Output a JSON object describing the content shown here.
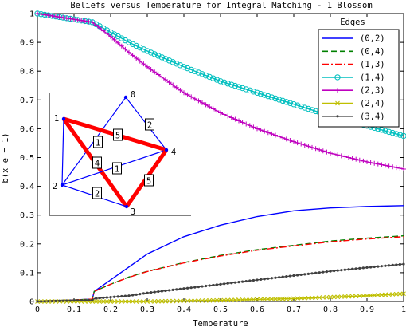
{
  "chart_data": {
    "type": "line",
    "title": "Beliefs versus Temperature for Integral Matching - 1 Blossom",
    "xlabel": "Temperature",
    "ylabel": "b(x_e = 1)",
    "xlim": [
      0,
      1
    ],
    "ylim": [
      0,
      1
    ],
    "xticks": [
      "0",
      "0.1",
      "0.2",
      "0.3",
      "0.4",
      "0.5",
      "0.6",
      "0.7",
      "0.8",
      "0.9",
      "1"
    ],
    "yticks": [
      "0",
      "0.1",
      "0.2",
      "0.3",
      "0.4",
      "0.5",
      "0.6",
      "0.7",
      "0.8",
      "0.9",
      "1"
    ],
    "grid": false,
    "legend": {
      "title": "Edges",
      "placement": "top-right"
    },
    "series": [
      {
        "name": "(0,2)",
        "color": "#0000ff",
        "style": "solid",
        "marker": "none",
        "x": [
          0,
          0.15,
          0.155,
          0.2,
          0.25,
          0.3,
          0.4,
          0.5,
          0.6,
          0.7,
          0.8,
          0.9,
          1.0
        ],
        "y": [
          0,
          0.008,
          0.035,
          0.075,
          0.12,
          0.165,
          0.225,
          0.265,
          0.295,
          0.315,
          0.325,
          0.33,
          0.333
        ]
      },
      {
        "name": "(0,4)",
        "color": "#008000",
        "style": "dashed",
        "marker": "none",
        "x": [
          0,
          0.15,
          0.155,
          0.2,
          0.25,
          0.3,
          0.4,
          0.5,
          0.6,
          0.7,
          0.8,
          0.9,
          1.0
        ],
        "y": [
          0,
          0.008,
          0.035,
          0.06,
          0.085,
          0.105,
          0.135,
          0.16,
          0.18,
          0.195,
          0.21,
          0.22,
          0.228
        ]
      },
      {
        "name": "(1,3)",
        "color": "#ff0000",
        "style": "dashdot",
        "marker": "none",
        "x": [
          0,
          0.15,
          0.155,
          0.2,
          0.25,
          0.3,
          0.4,
          0.5,
          0.6,
          0.7,
          0.8,
          0.9,
          1.0
        ],
        "y": [
          0,
          0.008,
          0.035,
          0.06,
          0.084,
          0.104,
          0.134,
          0.158,
          0.178,
          0.193,
          0.207,
          0.217,
          0.225
        ]
      },
      {
        "name": "(1,4)",
        "color": "#00bfbf",
        "style": "solid",
        "marker": "circle",
        "x": [
          0,
          0.15,
          0.2,
          0.25,
          0.3,
          0.4,
          0.5,
          0.6,
          0.7,
          0.8,
          0.9,
          1.0
        ],
        "y": [
          1.0,
          0.97,
          0.935,
          0.9,
          0.87,
          0.815,
          0.765,
          0.725,
          0.685,
          0.645,
          0.61,
          0.575
        ]
      },
      {
        "name": "(2,3)",
        "color": "#bf00bf",
        "style": "solid",
        "marker": "plus",
        "x": [
          0,
          0.15,
          0.2,
          0.25,
          0.3,
          0.4,
          0.5,
          0.6,
          0.7,
          0.8,
          0.9,
          1.0
        ],
        "y": [
          1.0,
          0.97,
          0.92,
          0.865,
          0.815,
          0.725,
          0.655,
          0.6,
          0.555,
          0.515,
          0.485,
          0.46
        ]
      },
      {
        "name": "(2,4)",
        "color": "#bfbf00",
        "style": "solid",
        "marker": "x",
        "x": [
          0,
          0.3,
          0.4,
          0.5,
          0.6,
          0.7,
          0.8,
          0.9,
          1.0
        ],
        "y": [
          0,
          0.0,
          0.002,
          0.004,
          0.007,
          0.01,
          0.015,
          0.02,
          0.027
        ]
      },
      {
        "name": "(3,4)",
        "color": "#404040",
        "style": "solid",
        "marker": "dot",
        "x": [
          0,
          0.15,
          0.155,
          0.2,
          0.25,
          0.3,
          0.4,
          0.5,
          0.6,
          0.7,
          0.8,
          0.9,
          1.0
        ],
        "y": [
          0,
          0.005,
          0.01,
          0.015,
          0.02,
          0.03,
          0.045,
          0.06,
          0.075,
          0.09,
          0.105,
          0.118,
          0.13
        ]
      }
    ]
  },
  "inset": {
    "nodes": [
      {
        "label": "0"
      },
      {
        "label": "1"
      },
      {
        "label": "2"
      },
      {
        "label": "3"
      },
      {
        "label": "4"
      }
    ],
    "edges": [
      {
        "from": "0",
        "to": "2",
        "weight": "",
        "highlight": false
      },
      {
        "from": "0",
        "to": "4",
        "weight": "2",
        "highlight": false
      },
      {
        "from": "1",
        "to": "3",
        "weight": "1",
        "highlight": true
      },
      {
        "from": "1",
        "to": "4",
        "weight": "5",
        "highlight": true
      },
      {
        "from": "2",
        "to": "3",
        "weight": "2",
        "highlight": false
      },
      {
        "from": "2",
        "to": "4",
        "weight": "1",
        "highlight": false
      },
      {
        "from": "3",
        "to": "4",
        "weight": "5",
        "highlight": true
      },
      {
        "from": "1",
        "to": "2",
        "weight": "4",
        "highlight": false
      }
    ]
  }
}
